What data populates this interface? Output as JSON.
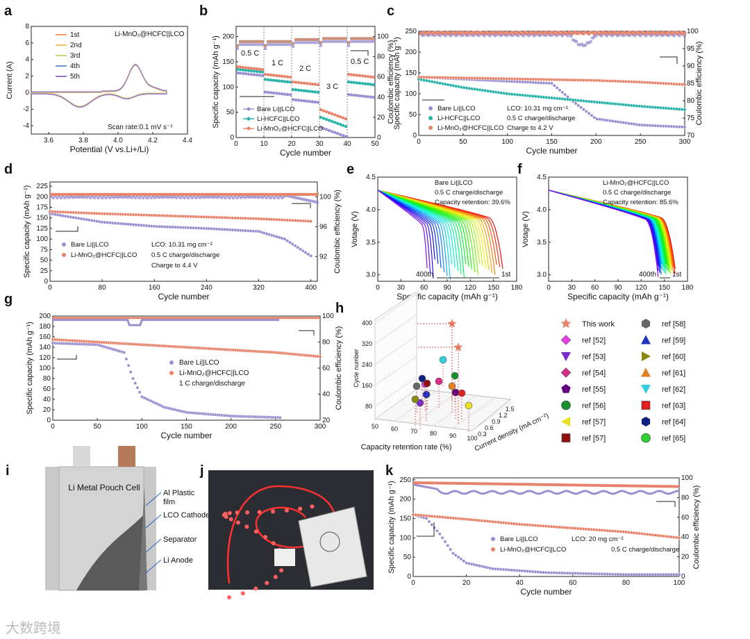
{
  "watermark": "大数跨境",
  "colors": {
    "bare": "#9b8fd0",
    "hcfc": "#27b3a7",
    "mno2": "#e8836b",
    "axis": "#222",
    "ref_line": "#d94c4c"
  },
  "panels": {
    "a": {
      "label": "a",
      "title": "Li-MnO₂@HCFC||LCO",
      "xlabel": "Potential (V vs.Li+/Li)",
      "ylabel": "Current (A)",
      "xticks": [
        "3.6",
        "3.8",
        "4.0",
        "4.2",
        "4.4"
      ],
      "yticks": [
        "-4",
        "-2",
        "0",
        "2",
        "4",
        "6",
        "8"
      ],
      "legend": [
        "1st",
        "2nd",
        "3rd",
        "4th",
        "5th"
      ],
      "scan_rate": "Scan rate:0.1 mV s⁻¹"
    },
    "b": {
      "label": "b",
      "xlabel": "Cycle number",
      "ylabel": "Specific capacity (mAh g⁻¹)",
      "y2label": "Coulombic efficiency (%)",
      "xticks": [
        "0",
        "10",
        "20",
        "30",
        "40",
        "50"
      ],
      "yticks": [
        "0",
        "50",
        "100",
        "150",
        "200"
      ],
      "y2ticks": [
        "0",
        "20",
        "40",
        "60",
        "80",
        "100"
      ],
      "rates": [
        "0.5 C",
        "1 C",
        "2 C",
        "3 C",
        "0.5 C"
      ],
      "legend": [
        "Bare Li||LCO",
        "Li-HCFC||LCO",
        "Li-MnO₂@HCFC||LCO"
      ]
    },
    "c": {
      "label": "c",
      "xlabel": "Cycle number",
      "ylabel": "Specific capacity (mAh g⁻¹)",
      "y2label": "Coulombic efficiency (%)",
      "xticks": [
        "0",
        "50",
        "100",
        "150",
        "200",
        "250",
        "300"
      ],
      "yticks": [
        "0",
        "50",
        "100",
        "150",
        "200",
        "250"
      ],
      "y2ticks": [
        "70",
        "75",
        "80",
        "85",
        "90",
        "95",
        "100"
      ],
      "legend": [
        "Bare Li||LCO",
        "Li-HCFC||LCO",
        "Li-MnO₂@HCFC||LCO"
      ],
      "notes": [
        "LCO: 10.31 mg cm⁻²",
        "0.5 C charge/discharge",
        "Charge to 4.2 V"
      ]
    },
    "d": {
      "label": "d",
      "xlabel": "Cycle number",
      "ylabel": "Specific capacity (mAh g⁻¹)",
      "y2label": "Coulombic efficiency (%)",
      "xticks": [
        "0",
        "80",
        "160",
        "240",
        "320",
        "400"
      ],
      "yticks": [
        "0",
        "25",
        "50",
        "75",
        "100",
        "125",
        "150",
        "175",
        "200",
        "225"
      ],
      "y2ticks": [
        "92",
        "96",
        "100"
      ],
      "legend": [
        "Bare Li||LCO",
        "Li-MnO₂@HCFC||LCO"
      ],
      "notes": [
        "LCO: 10.31 mg cm⁻²",
        "0.5 C charge/discharge",
        "Charge to 4.4 V"
      ]
    },
    "e": {
      "label": "e",
      "xlabel": "Specific capacity (mAh g⁻¹)",
      "ylabel": "Votage (V)",
      "xticks": [
        "0",
        "30",
        "60",
        "90",
        "120",
        "150",
        "180"
      ],
      "yticks": [
        "3.0",
        "3.5",
        "4.0",
        "4.5"
      ],
      "notes": [
        "Bare Li||LCO",
        "0.5 C charge/discharge",
        "Capacity retention: 39.6%"
      ],
      "first": "1st",
      "last": "400th"
    },
    "f": {
      "label": "f",
      "xlabel": "Specific capacity (mAh g⁻¹)",
      "ylabel": "Votage (V)",
      "xticks": [
        "0",
        "30",
        "60",
        "90",
        "120",
        "150",
        "180"
      ],
      "yticks": [
        "3.0",
        "3.5",
        "4.0",
        "4.5"
      ],
      "notes": [
        "Li-MnO₂@HCFC||LCO",
        "0.5 C charge/discharge",
        "Capacity retention: 85.6%"
      ],
      "first": "1st",
      "last": "400th"
    },
    "g": {
      "label": "g",
      "xlabel": "Cycle number",
      "ylabel": "Specific capacity (mAh g⁻¹)",
      "y2label": "Coulombic efficiency (%)",
      "xticks": [
        "0",
        "50",
        "100",
        "150",
        "200",
        "250",
        "300"
      ],
      "yticks": [
        "0",
        "20",
        "40",
        "60",
        "80",
        "100",
        "120",
        "140",
        "160",
        "180",
        "200"
      ],
      "y2ticks": [
        "20",
        "40",
        "60",
        "80",
        "100"
      ],
      "legend": [
        "Bare Li||LCO",
        "Li-MnO₂@HCFC||LCO"
      ],
      "notes": [
        "1 C charge/discharge"
      ]
    },
    "h": {
      "label": "h",
      "xlabel": "Capacity retention rate (%)",
      "ylabel": "Cycle number",
      "zlabel": "Current density (mA cm⁻²)",
      "xticks": [
        "50",
        "60",
        "70",
        "80",
        "90",
        "100"
      ],
      "yticks": [
        "80",
        "160",
        "240",
        "320",
        "400"
      ],
      "zticks": [
        "0.3",
        "0.6",
        "0.9",
        "1.2",
        "1.5"
      ]
    },
    "i": {
      "label": "i",
      "cell_title": "Li Metal Pouch Cell",
      "labels": [
        "Al Plastic film",
        "LCO Cathode",
        "Separator",
        "Li Anode"
      ]
    },
    "j": {
      "label": "j",
      "photo": "Pouch cell powering LED light strip"
    },
    "k": {
      "label": "k",
      "xlabel": "Cycle number",
      "ylabel": "Specific capacity (mAh g⁻¹)",
      "y2label": "Coulombic efficiency (%)",
      "xticks": [
        "0",
        "20",
        "40",
        "60",
        "80",
        "100"
      ],
      "yticks": [
        "0",
        "50",
        "100",
        "150",
        "200",
        "250"
      ],
      "y2ticks": [
        "0",
        "20",
        "40",
        "60",
        "80",
        "100"
      ],
      "legend": [
        "Bare Li||LCO",
        "Li-MnO₂@HCFC||LCO"
      ],
      "notes": [
        "LCO: 20 mg cm⁻²",
        "0.5 C charge/discharge"
      ]
    }
  },
  "legend_refs": [
    {
      "label": "This work",
      "shape": "star",
      "color": "#e8836b"
    },
    {
      "label": "ref [58]",
      "shape": "hex",
      "color": "#666"
    },
    {
      "label": "ref [52]",
      "shape": "diamond",
      "color": "#e040e0"
    },
    {
      "label": "ref [59]",
      "shape": "tri-up",
      "color": "#2030c0"
    },
    {
      "label": "ref [53]",
      "shape": "tri-down",
      "color": "#7a2bd0"
    },
    {
      "label": "ref [60]",
      "shape": "tri-right",
      "color": "#8a8a10"
    },
    {
      "label": "ref [54]",
      "shape": "diamond",
      "color": "#d0308a"
    },
    {
      "label": "ref [61]",
      "shape": "tri-up",
      "color": "#e08020"
    },
    {
      "label": "ref [55]",
      "shape": "pent",
      "color": "#600080"
    },
    {
      "label": "ref [62]",
      "shape": "tri-down",
      "color": "#30d0e0"
    },
    {
      "label": "ref [56]",
      "shape": "circle",
      "color": "#1a9030"
    },
    {
      "label": "ref [63]",
      "shape": "square",
      "color": "#e02020"
    },
    {
      "label": "ref [57]",
      "shape": "tri-left",
      "color": "#e8e020"
    },
    {
      "label": "ref [64]",
      "shape": "hex",
      "color": "#102080"
    },
    {
      "label": "ref [57]",
      "shape": "square",
      "color": "#901010"
    },
    {
      "label": "ref [65]",
      "shape": "circle",
      "color": "#30d030"
    }
  ],
  "chart_data": [
    {
      "id": "a",
      "type": "line",
      "title": "Li-MnO₂@HCFC||LCO",
      "xlabel": "Potential (V vs.Li+/Li)",
      "ylabel": "Current (A)",
      "xlim": [
        3.5,
        4.4
      ],
      "ylim": [
        -5,
        8
      ],
      "series": [
        {
          "name": "1st",
          "color": "#e8a070"
        },
        {
          "name": "2nd",
          "color": "#e8c070"
        },
        {
          "name": "3rd",
          "color": "#c8d070"
        },
        {
          "name": "4th",
          "color": "#7090d0"
        },
        {
          "name": "5th",
          "color": "#9b70c0"
        }
      ],
      "anodic_peak": {
        "x": 4.1,
        "y": 3.2
      },
      "cathodic_peak": {
        "x": 3.8,
        "y": -1.6
      }
    },
    {
      "id": "b",
      "type": "line",
      "xlabel": "Cycle number",
      "ylabel": "Specific capacity (mAh g⁻¹)",
      "xlim": [
        0,
        50
      ],
      "ylim": [
        0,
        200
      ],
      "y2lim": [
        0,
        100
      ],
      "segments": [
        {
          "rate": "0.5 C",
          "cycles": [
            0,
            10
          ]
        },
        {
          "rate": "1 C",
          "cycles": [
            10,
            20
          ]
        },
        {
          "rate": "2 C",
          "cycles": [
            20,
            30
          ]
        },
        {
          "rate": "3 C",
          "cycles": [
            30,
            40
          ]
        },
        {
          "rate": "0.5 C",
          "cycles": [
            40,
            50
          ]
        }
      ],
      "series": [
        {
          "name": "Bare Li||LCO",
          "capacity": [
            128,
            90,
            75,
            20,
            85
          ]
        },
        {
          "name": "Li-HCFC||LCO",
          "capacity": [
            135,
            115,
            95,
            40,
            110
          ]
        },
        {
          "name": "Li-MnO₂@HCFC||LCO",
          "capacity": [
            140,
            125,
            110,
            55,
            125
          ]
        }
      ],
      "ce": [
        95,
        95,
        97,
        98,
        98
      ]
    },
    {
      "id": "c",
      "type": "line",
      "xlabel": "Cycle number",
      "xlim": [
        0,
        300
      ],
      "ylim": [
        0,
        250
      ],
      "y2lim": [
        70,
        100
      ],
      "series": [
        {
          "name": "Bare Li||LCO",
          "x": [
            0,
            50,
            100,
            150,
            175,
            200,
            250,
            300
          ],
          "y": [
            140,
            135,
            130,
            125,
            80,
            40,
            25,
            20
          ]
        },
        {
          "name": "Li-HCFC||LCO",
          "x": [
            0,
            50,
            100,
            150,
            200,
            250,
            300
          ],
          "y": [
            135,
            115,
            100,
            90,
            80,
            70,
            62
          ]
        },
        {
          "name": "Li-MnO₂@HCFC||LCO",
          "x": [
            0,
            50,
            100,
            150,
            200,
            250,
            300
          ],
          "y": [
            140,
            138,
            136,
            134,
            132,
            128,
            122
          ]
        }
      ]
    },
    {
      "id": "d",
      "type": "line",
      "xlabel": "Cycle number",
      "xlim": [
        0,
        410
      ],
      "ylim": [
        0,
        225
      ],
      "y2lim": [
        92,
        100
      ],
      "series": [
        {
          "name": "Bare Li||LCO",
          "x": [
            0,
            80,
            160,
            240,
            320,
            360,
            400
          ],
          "y": [
            160,
            140,
            130,
            125,
            118,
            100,
            60
          ]
        },
        {
          "name": "Li-MnO₂@HCFC||LCO",
          "x": [
            0,
            80,
            160,
            240,
            320,
            400
          ],
          "y": [
            165,
            160,
            156,
            152,
            148,
            142
          ]
        }
      ]
    },
    {
      "id": "e",
      "type": "line",
      "xlabel": "Specific capacity (mAh g⁻¹)",
      "ylabel": "Votage (V)",
      "xlim": [
        0,
        180
      ],
      "ylim": [
        2.9,
        4.5
      ],
      "first_capacity": 163,
      "last_capacity": 65,
      "retention": "39.6%"
    },
    {
      "id": "f",
      "type": "line",
      "xlabel": "Specific capacity (mAh g⁻¹)",
      "ylabel": "Votage (V)",
      "xlim": [
        0,
        180
      ],
      "ylim": [
        2.9,
        4.5
      ],
      "first_capacity": 165,
      "last_capacity": 142,
      "retention": "85.6%"
    },
    {
      "id": "g",
      "type": "line",
      "xlabel": "Cycle number",
      "xlim": [
        0,
        300
      ],
      "ylim": [
        0,
        200
      ],
      "y2lim": [
        20,
        100
      ],
      "series": [
        {
          "name": "Bare Li||LCO",
          "x": [
            0,
            50,
            80,
            90,
            100,
            125,
            150,
            200,
            255
          ],
          "y": [
            148,
            145,
            130,
            80,
            45,
            25,
            15,
            8,
            5
          ]
        },
        {
          "name": "Li-MnO₂@HCFC||LCO",
          "x": [
            0,
            50,
            100,
            150,
            200,
            250,
            300
          ],
          "y": [
            155,
            150,
            145,
            140,
            135,
            130,
            122
          ]
        }
      ]
    },
    {
      "id": "h",
      "type": "scatter",
      "xlabel": "Capacity retention rate (%)",
      "ylabel": "Cycle number",
      "zlabel": "Current density (mA cm⁻²)",
      "points": [
        {
          "label": "This work",
          "cycles": 400
        },
        {
          "label": "This work",
          "cycles": 300
        }
      ]
    },
    {
      "id": "k",
      "type": "line",
      "xlabel": "Cycle number",
      "xlim": [
        0,
        100
      ],
      "ylim": [
        0,
        250
      ],
      "y2lim": [
        0,
        100
      ],
      "series": [
        {
          "name": "Bare Li||LCO",
          "x": [
            0,
            5,
            10,
            15,
            20,
            30,
            50,
            80,
            100
          ],
          "y": [
            160,
            150,
            110,
            60,
            35,
            20,
            10,
            5,
            5
          ]
        },
        {
          "name": "Li-MnO₂@HCFC||LCO",
          "x": [
            0,
            20,
            40,
            60,
            80,
            100
          ],
          "y": [
            160,
            148,
            135,
            125,
            115,
            100
          ]
        }
      ],
      "ce": {
        "mno2": 97,
        "bare": 90
      }
    }
  ]
}
